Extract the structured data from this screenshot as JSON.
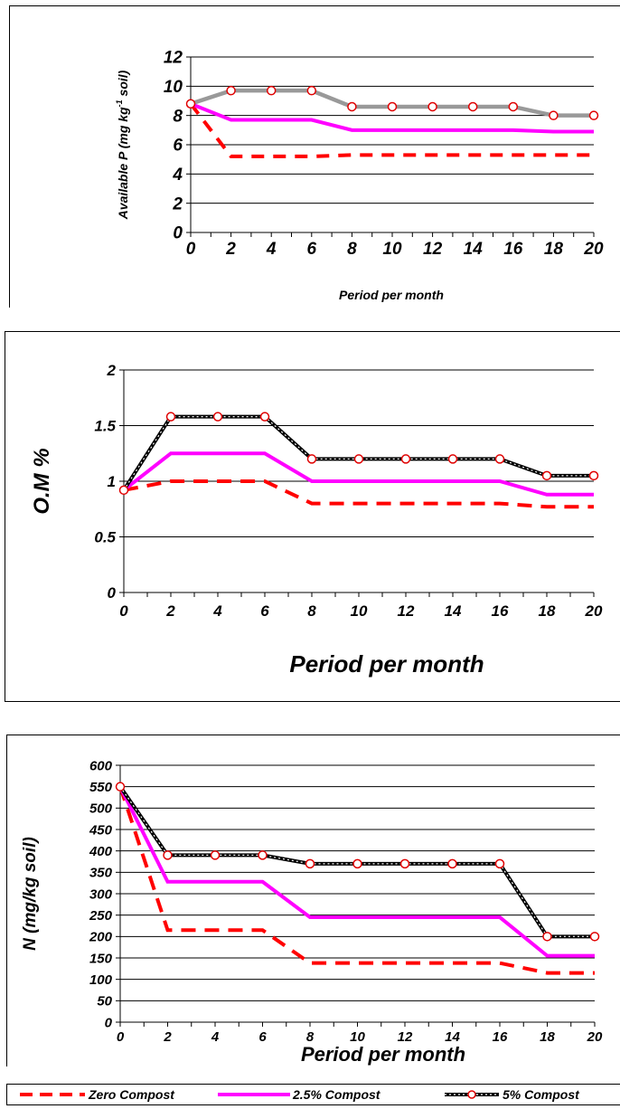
{
  "chart_data": [
    {
      "type": "line",
      "title": "",
      "xlabel": "Period per month",
      "ylabel_main": "Available P (mg kg",
      "ylabel_sup": "-1",
      "ylabel_tail": " soil)",
      "ylim": [
        0,
        12
      ],
      "yticks": [
        0,
        2,
        4,
        6,
        8,
        10,
        12
      ],
      "xticks": [
        0,
        2,
        4,
        6,
        8,
        10,
        12,
        14,
        16,
        18,
        20
      ],
      "x": [
        0,
        2,
        4,
        6,
        8,
        10,
        12,
        14,
        16,
        18,
        20
      ],
      "grid": "horizontal",
      "series": [
        {
          "name": "Zero Compost",
          "values": [
            8.8,
            5.2,
            5.2,
            5.2,
            5.3,
            5.3,
            5.3,
            5.3,
            5.3,
            5.3,
            5.3
          ],
          "color": "#ff0000"
        },
        {
          "name": "2.5% Compost",
          "values": [
            8.8,
            7.7,
            7.7,
            7.7,
            7.0,
            7.0,
            7.0,
            7.0,
            7.0,
            6.9,
            6.9
          ],
          "color": "#ff00ff"
        },
        {
          "name": "5% Compost",
          "values": [
            8.8,
            9.7,
            9.7,
            9.7,
            8.6,
            8.6,
            8.6,
            8.6,
            8.6,
            8.0,
            8.0
          ],
          "color": "#999999"
        }
      ]
    },
    {
      "type": "line",
      "title": "",
      "xlabel": "Period per month",
      "ylabel": "O.M %",
      "ylim": [
        0,
        2
      ],
      "yticks": [
        0,
        0.5,
        1,
        1.5,
        2
      ],
      "xticks": [
        0,
        2,
        4,
        6,
        8,
        10,
        12,
        14,
        16,
        18,
        20
      ],
      "x": [
        0,
        2,
        4,
        6,
        8,
        10,
        12,
        14,
        16,
        18,
        20
      ],
      "grid": "horizontal",
      "series": [
        {
          "name": "Zero Compost",
          "values": [
            0.92,
            1.0,
            1.0,
            1.0,
            0.8,
            0.8,
            0.8,
            0.8,
            0.8,
            0.77,
            0.77
          ],
          "color": "#ff0000"
        },
        {
          "name": "2.5% Compost",
          "values": [
            0.92,
            1.25,
            1.25,
            1.25,
            1.0,
            1.0,
            1.0,
            1.0,
            1.0,
            0.88,
            0.88
          ],
          "color": "#ff00ff"
        },
        {
          "name": "5% Compost",
          "values": [
            0.92,
            1.58,
            1.58,
            1.58,
            1.2,
            1.2,
            1.2,
            1.2,
            1.2,
            1.05,
            1.05
          ],
          "color": "#000000"
        }
      ]
    },
    {
      "type": "line",
      "title": "",
      "xlabel": "Period per month",
      "ylabel": "N (mg/kg soil)",
      "ylim": [
        0,
        600
      ],
      "yticks": [
        0,
        50,
        100,
        150,
        200,
        250,
        300,
        350,
        400,
        450,
        500,
        550,
        600
      ],
      "xticks": [
        0,
        2,
        4,
        6,
        8,
        10,
        12,
        14,
        16,
        18,
        20
      ],
      "x": [
        0,
        2,
        4,
        6,
        8,
        10,
        12,
        14,
        16,
        18,
        20
      ],
      "grid": "horizontal",
      "series": [
        {
          "name": "Zero Compost",
          "values": [
            550,
            215,
            215,
            215,
            138,
            138,
            138,
            138,
            138,
            115,
            115
          ],
          "color": "#ff0000"
        },
        {
          "name": "2.5% Compost",
          "values": [
            550,
            328,
            328,
            328,
            245,
            245,
            245,
            245,
            245,
            155,
            155
          ],
          "color": "#ff00ff"
        },
        {
          "name": "5% Compost",
          "values": [
            550,
            390,
            390,
            390,
            370,
            370,
            370,
            370,
            370,
            200,
            200
          ],
          "color": "#000000"
        }
      ]
    }
  ],
  "legend": {
    "items": [
      {
        "label": "Zero Compost",
        "style": "dashed-red"
      },
      {
        "label": "2.5% Compost",
        "style": "solid-magenta"
      },
      {
        "label": "5% Compost",
        "style": "dotted-black-circles"
      }
    ]
  }
}
